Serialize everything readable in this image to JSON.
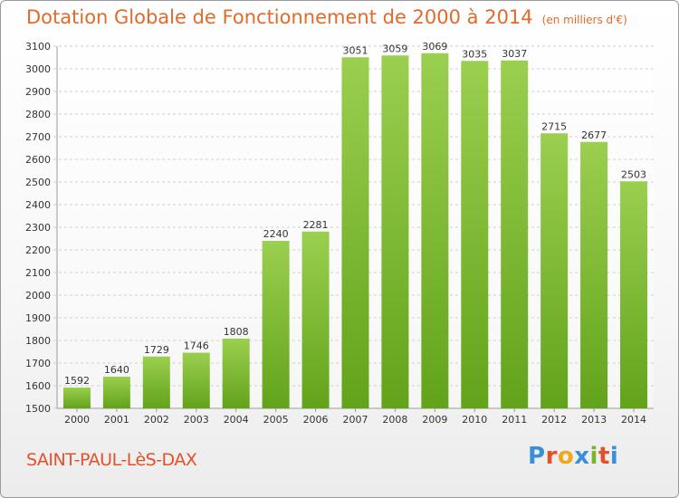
{
  "chart_data": {
    "type": "bar",
    "title": "Dotation Globale de Fonctionnement de 2000 à 2014",
    "subtitle": "(en milliers d'€)",
    "categories": [
      "2000",
      "2001",
      "2002",
      "2003",
      "2004",
      "2005",
      "2006",
      "2007",
      "2008",
      "2009",
      "2010",
      "2011",
      "2012",
      "2013",
      "2014"
    ],
    "values": [
      1592,
      1640,
      1729,
      1746,
      1808,
      2240,
      2281,
      3051,
      3059,
      3069,
      3035,
      3037,
      2715,
      2677,
      2503
    ],
    "ylim": [
      1500,
      3100
    ],
    "yticks": [
      1500,
      1600,
      1700,
      1800,
      1900,
      2000,
      2100,
      2200,
      2300,
      2400,
      2500,
      2600,
      2700,
      2800,
      2900,
      3000,
      3100
    ],
    "xlabel": "",
    "ylabel": "",
    "grid": true,
    "legend": "none",
    "bar_color_top": "#9bcf4f",
    "bar_color_bottom": "#62a31a"
  },
  "footer": {
    "commune": "SAINT-PAUL-LèS-DAX",
    "brand": "Proxiti"
  },
  "colors": {
    "title": "#e06a2a",
    "commune": "#e3502a",
    "brand_letters": [
      "#3b8fd9",
      "#e3502a",
      "#f0a81c",
      "#3b8fd9",
      "#7bb32e",
      "#e3502a",
      "#3b8fd9"
    ]
  }
}
